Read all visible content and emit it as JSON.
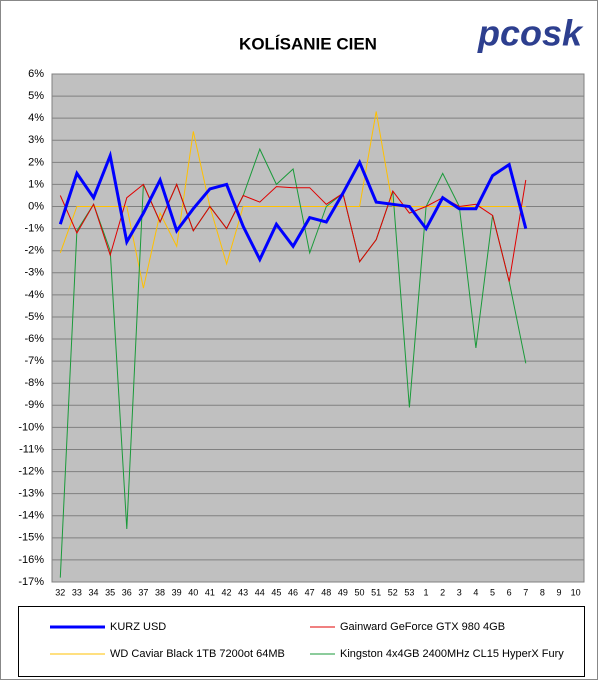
{
  "chart_data": {
    "type": "line",
    "title": "KOLÍSANIE CIEN",
    "logo": "pcosk",
    "categories": [
      "32",
      "33",
      "34",
      "35",
      "36",
      "37",
      "38",
      "39",
      "40",
      "41",
      "42",
      "43",
      "44",
      "45",
      "46",
      "47",
      "48",
      "49",
      "50",
      "51",
      "52",
      "53",
      "1",
      "2",
      "3",
      "4",
      "5",
      "6",
      "7",
      "8",
      "9",
      "10"
    ],
    "ylim": [
      -17,
      6
    ],
    "yticks": [
      {
        "value": 6,
        "label": "6%"
      },
      {
        "value": 5,
        "label": "5%"
      },
      {
        "value": 4,
        "label": "4%"
      },
      {
        "value": 3,
        "label": "3%"
      },
      {
        "value": 2,
        "label": "2%"
      },
      {
        "value": 1,
        "label": "1%"
      },
      {
        "value": 0,
        "label": "0%"
      },
      {
        "value": -1,
        "label": "-1%"
      },
      {
        "value": -2,
        "label": "-2%"
      },
      {
        "value": -3,
        "label": "-3%"
      },
      {
        "value": -4,
        "label": "-4%"
      },
      {
        "value": -5,
        "label": "-5%"
      },
      {
        "value": -6,
        "label": "-6%"
      },
      {
        "value": -7,
        "label": "-7%"
      },
      {
        "value": -8,
        "label": "-8%"
      },
      {
        "value": -9,
        "label": "-9%"
      },
      {
        "value": -10,
        "label": "-10%"
      },
      {
        "value": -11,
        "label": "-11%"
      },
      {
        "value": -12,
        "label": "-12%"
      },
      {
        "value": -13,
        "label": "-13%"
      },
      {
        "value": -14,
        "label": "-14%"
      },
      {
        "value": -15,
        "label": "-15%"
      },
      {
        "value": -16,
        "label": "-16%"
      },
      {
        "value": -17,
        "label": "-17%"
      }
    ],
    "grid": true,
    "series": [
      {
        "name": "KURZ USD",
        "color": "#0000ff",
        "width": 3,
        "values": [
          -0.8,
          1.5,
          0.4,
          2.3,
          -1.6,
          -0.3,
          1.2,
          -1.1,
          -0.1,
          0.8,
          1.0,
          -0.9,
          -2.4,
          -0.8,
          -1.8,
          -0.5,
          -0.7,
          0.6,
          2.0,
          0.2,
          0.1,
          0.0,
          -1.0,
          0.4,
          -0.1,
          -0.1,
          1.4,
          1.9,
          -1.0,
          null,
          null,
          null
        ]
      },
      {
        "name": "Gainward GeForce GTX 980 4GB",
        "color": "#e00000",
        "width": 1,
        "values": [
          0.5,
          -1.2,
          0.1,
          -2.2,
          0.4,
          1.0,
          -0.7,
          1.0,
          -1.1,
          0.0,
          -1.0,
          0.5,
          0.2,
          0.9,
          0.85,
          0.85,
          0.1,
          0.6,
          -2.5,
          -1.5,
          0.7,
          -0.3,
          0.0,
          0.4,
          0.0,
          0.1,
          -0.4,
          -3.4,
          1.2,
          null,
          null,
          null
        ]
      },
      {
        "name": "WD Caviar Black 1TB 7200ot 64MB",
        "color": "#ffc000",
        "width": 1,
        "values": [
          -2.1,
          0,
          0,
          0,
          0,
          -3.7,
          -0.3,
          -1.8,
          3.4,
          0,
          -2.6,
          0,
          0,
          0,
          0,
          0,
          0,
          0,
          0,
          4.3,
          0,
          0,
          0,
          0,
          0,
          0,
          0,
          0,
          0,
          null,
          null,
          null
        ]
      },
      {
        "name": "Kingston 4x4GB 2400MHz CL15 HyperX Fury",
        "color": "#1a9a3a",
        "width": 1,
        "values": [
          -16.8,
          -1.1,
          0.1,
          -2.0,
          -14.6,
          1.0,
          -0.7,
          1.0,
          -1.1,
          0.0,
          -1.0,
          0.5,
          2.6,
          1.0,
          1.7,
          -2.1,
          0.0,
          0.6,
          -2.5,
          -1.5,
          0.7,
          -9.1,
          0.0,
          1.5,
          0.0,
          -6.4,
          -0.4,
          -3.4,
          -7.1,
          null,
          null,
          null
        ]
      }
    ]
  }
}
